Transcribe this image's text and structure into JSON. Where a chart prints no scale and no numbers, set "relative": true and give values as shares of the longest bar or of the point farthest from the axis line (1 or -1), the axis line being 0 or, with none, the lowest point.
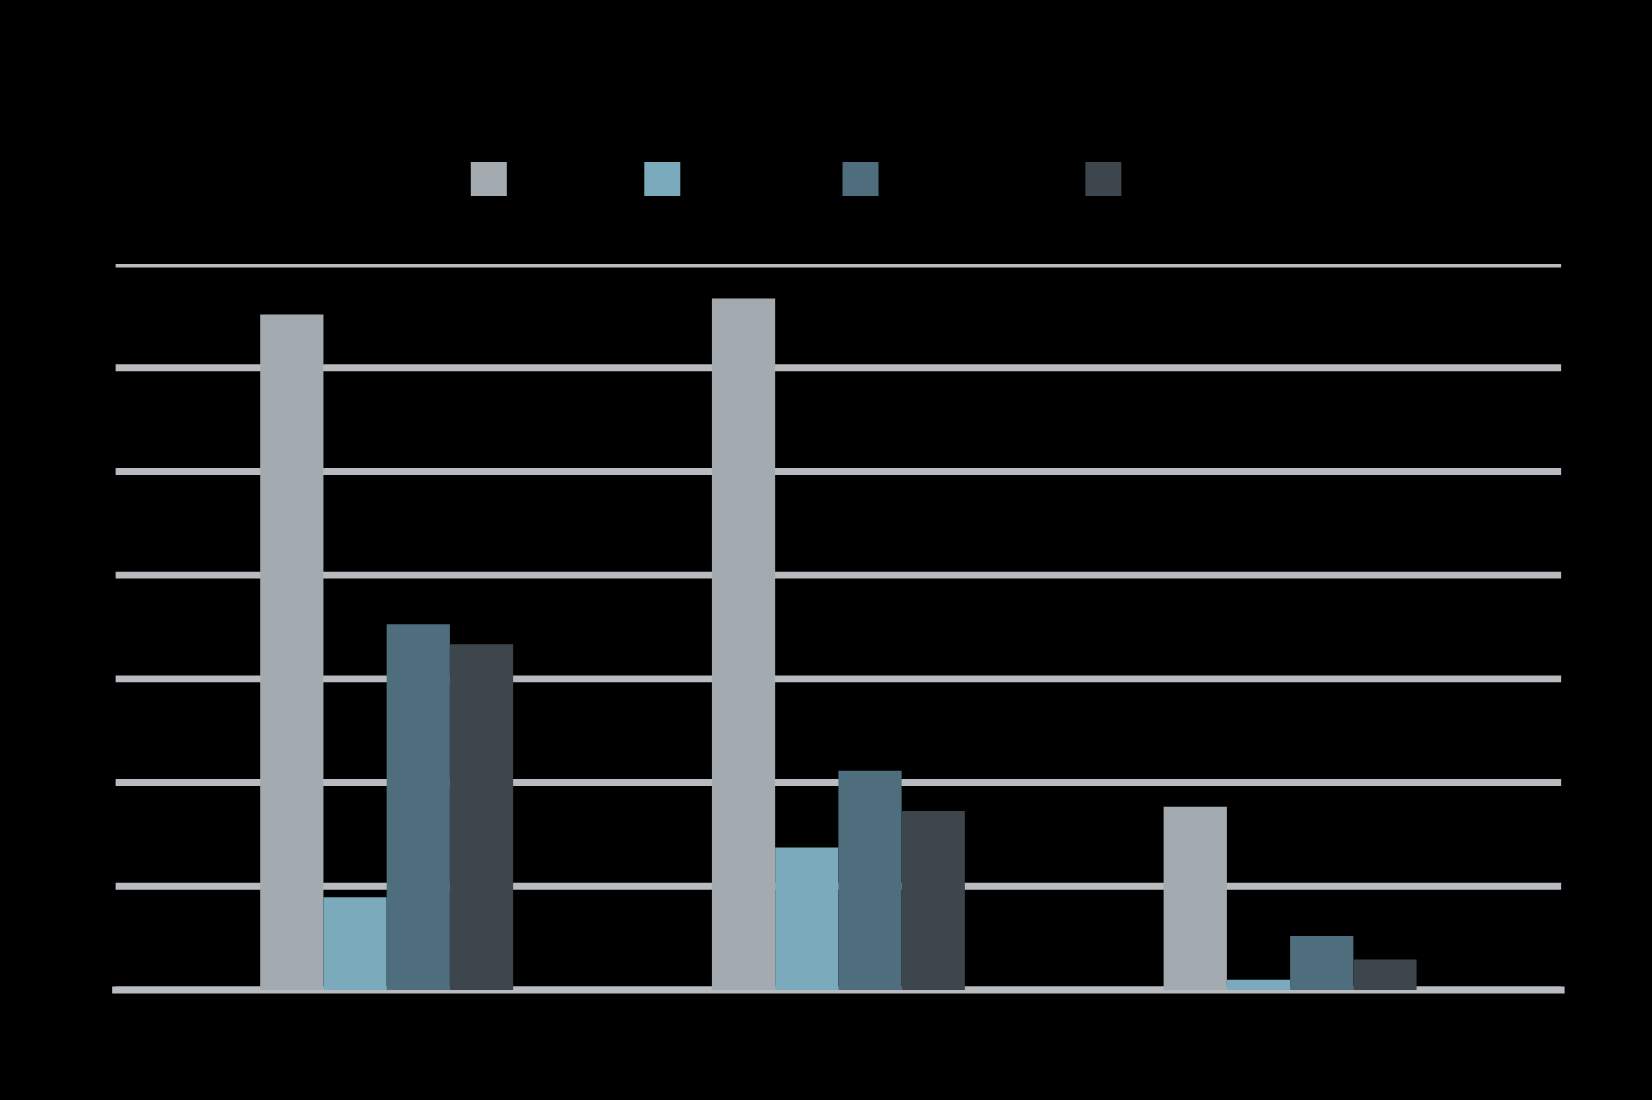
{
  "chart_data": {
    "type": "bar",
    "relative": true,
    "categories": [
      null,
      null,
      null
    ],
    "series": [
      {
        "color": "#a4abb0",
        "values": [
          0.977,
          1,
          0.265
        ]
      },
      {
        "color": "#7aaabb",
        "values": [
          0.134,
          0.206,
          0.015
        ]
      },
      {
        "color": "#4e6e7e",
        "values": [
          0.529,
          0.317,
          0.078
        ]
      },
      {
        "color": "#3e464d",
        "values": [
          0.5,
          0.259,
          0.044
        ]
      }
    ],
    "grid": "y"
  }
}
